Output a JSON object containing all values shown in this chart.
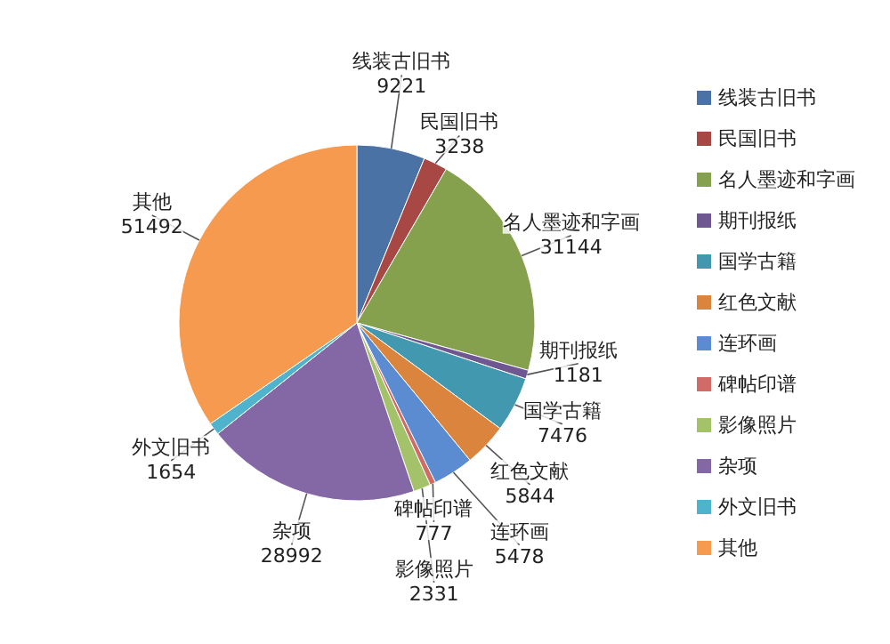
{
  "chart_data": {
    "type": "pie",
    "categories": [
      "线装古旧书",
      "民国旧书",
      "名人墨迹和字画",
      "期刊报纸",
      "国学古籍",
      "红色文献",
      "连环画",
      "碑帖印谱",
      "影像照片",
      "杂项",
      "外文旧书",
      "其他"
    ],
    "values": [
      9221,
      3238,
      31144,
      1181,
      7476,
      5844,
      5478,
      777,
      2331,
      28992,
      1654,
      51492
    ],
    "colors": [
      "#4a72a5",
      "#a84845",
      "#85a14d",
      "#6f5791",
      "#4198af",
      "#db843d",
      "#5b8bd0",
      "#d06b67",
      "#a4c26a",
      "#8468a6",
      "#4fb3ce",
      "#f59a4e"
    ],
    "data_labels": true,
    "legend": "right"
  }
}
